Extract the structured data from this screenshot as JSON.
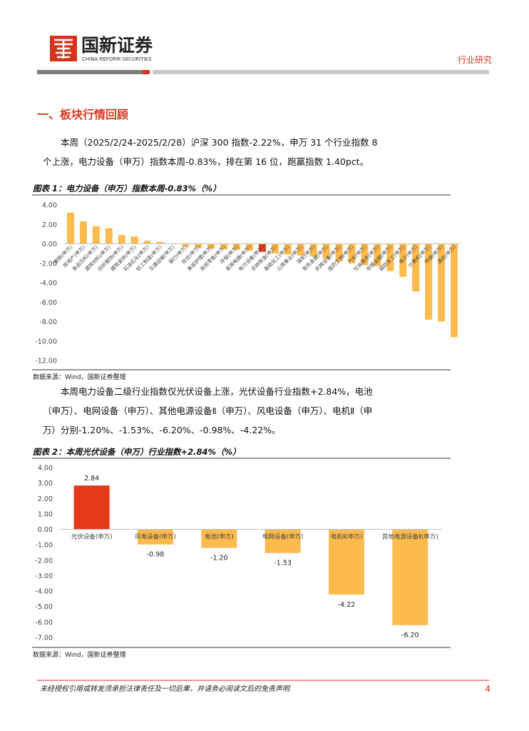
{
  "header": {
    "brand": "国新证券",
    "brand_en": "CHINA REFORM SECURITIES",
    "section": "行业研究"
  },
  "heading": "一、板块行情回顾",
  "paragraphs": [
    "本周（2025/2/24-2025/2/28）沪深 300 指数-2.22%，申万 31 个行业指数 8 个上涨，电力设备（申万）指数本周-0.83%，排在第 16 位，跑赢指数 1.40pct。",
    "本周电力设备二级行业指数仅光伏设备上涨，光伏设备行业指数+2.84%，电池（申万）、电网设备（申万）、其他电源设备Ⅱ（申万）、风电设备（申万）、电机Ⅱ（申万）分别-1.20%、-1.53%、-6.20%、-0.98%、-4.22%。"
  ],
  "chart_data": [
    {
      "type": "bar",
      "title": "图表 1：电力设备（申万）指数本周-0.83%（%）",
      "source": "数据来源：Wind，国新证券整理",
      "categories": [
        "钢铁(申万)",
        "房地产(申万)",
        "食品饮料(申万)",
        "建筑材料(申万)",
        "纺织服饰(申万)",
        "建筑装饰(申万)",
        "石油石化(申万)",
        "轻工制造(申万)",
        "交通运输(申万)",
        "银行(申万)",
        "综合(申万)",
        "美容护理(申万)",
        "商贸零售(申万)",
        "环保(申万)",
        "家用电器(申万)",
        "电力设备(申万)",
        "农林牧渔(申万)",
        "基础化工(申万)",
        "公用事业(申万)",
        "煤炭(申万)",
        "有色金属(申万)",
        "机械设备(申万)",
        "医药生物(申万)",
        "汽车(申万)",
        "社会服务(申万)",
        "非银金融(申万)",
        "国防军工(申万)",
        "电子(申万)",
        "计算机(申万)",
        "传媒(申万)",
        "通信(申万)"
      ],
      "values": [
        3.2,
        2.3,
        1.8,
        1.6,
        0.9,
        0.75,
        0.3,
        0.2,
        -0.05,
        -0.3,
        -0.4,
        -0.5,
        -0.55,
        -0.6,
        -0.7,
        -0.83,
        -1.0,
        -1.1,
        -1.2,
        -1.3,
        -1.5,
        -1.8,
        -2.0,
        -2.2,
        -2.3,
        -2.8,
        -3.4,
        -4.9,
        -7.8,
        -8.0,
        -9.6
      ],
      "colors": [
        "#fdbb4d",
        "#fdbb4d",
        "#fdbb4d",
        "#fdbb4d",
        "#fdbb4d",
        "#fdbb4d",
        "#fdbb4d",
        "#fdbb4d",
        "#fdbb4d",
        "#fdbb4d",
        "#fdbb4d",
        "#fdbb4d",
        "#fdbb4d",
        "#fdbb4d",
        "#fdbb4d",
        "#e6391a",
        "#fdbb4d",
        "#fdbb4d",
        "#fdbb4d",
        "#fdbb4d",
        "#fdbb4d",
        "#fdbb4d",
        "#fdbb4d",
        "#fdbb4d",
        "#fdbb4d",
        "#fdbb4d",
        "#fdbb4d",
        "#fdbb4d",
        "#fdbb4d",
        "#fdbb4d",
        "#fdbb4d"
      ],
      "ylim": [
        -12,
        4
      ],
      "yticks": [
        {
          "value": 4,
          "label": "4.00"
        },
        {
          "value": 2,
          "label": "2.00"
        },
        {
          "value": 0,
          "label": "0.00"
        },
        {
          "value": -2,
          "label": "-2.00"
        },
        {
          "value": -4,
          "label": "-4.00"
        },
        {
          "value": -6,
          "label": "-6.00"
        },
        {
          "value": -8,
          "label": "-8.00"
        },
        {
          "value": -10,
          "label": "-10.00"
        },
        {
          "value": -12,
          "label": "-12.00"
        }
      ],
      "grid": false
    },
    {
      "type": "bar",
      "title": "图表 2：本周光伏设备（申万）行业指数+2.84%（%）",
      "source": "数据来源：Wind，国新证券整理",
      "categories": [
        "光伏设备(申万)",
        "风电设备(申万)",
        "电池(申万)",
        "电网设备(申万)",
        "电机Ⅱ(申万)",
        "其他电源设备Ⅱ(申万)"
      ],
      "values": [
        2.84,
        -0.98,
        -1.2,
        -1.53,
        -4.22,
        -6.2
      ],
      "value_labels": [
        "2.84",
        "-0.98",
        "-1.20",
        "-1.53",
        "-4.22",
        "-6.20"
      ],
      "colors": [
        "#e6391a",
        "#fdbb4d",
        "#fdbb4d",
        "#fdbb4d",
        "#fdbb4d",
        "#fdbb4d"
      ],
      "ylim": [
        -7,
        4
      ],
      "yticks": [
        {
          "value": 4,
          "label": "4.00"
        },
        {
          "value": 3,
          "label": "3.00"
        },
        {
          "value": 2,
          "label": "2.00"
        },
        {
          "value": 1,
          "label": "1.00"
        },
        {
          "value": 0,
          "label": "0.00"
        },
        {
          "value": -1,
          "label": "-1.00"
        },
        {
          "value": -2,
          "label": "-2.00"
        },
        {
          "value": -3,
          "label": "-3.00"
        },
        {
          "value": -4,
          "label": "-4.00"
        },
        {
          "value": -5,
          "label": "-5.00"
        },
        {
          "value": -6,
          "label": "-6.00"
        },
        {
          "value": -7,
          "label": "-7.00"
        }
      ],
      "grid": false
    }
  ],
  "footer": {
    "disclaimer": "未经授权引用或转发须承担法律责任及一切后果，并请务必阅读文后的免责声明",
    "page": 4
  }
}
